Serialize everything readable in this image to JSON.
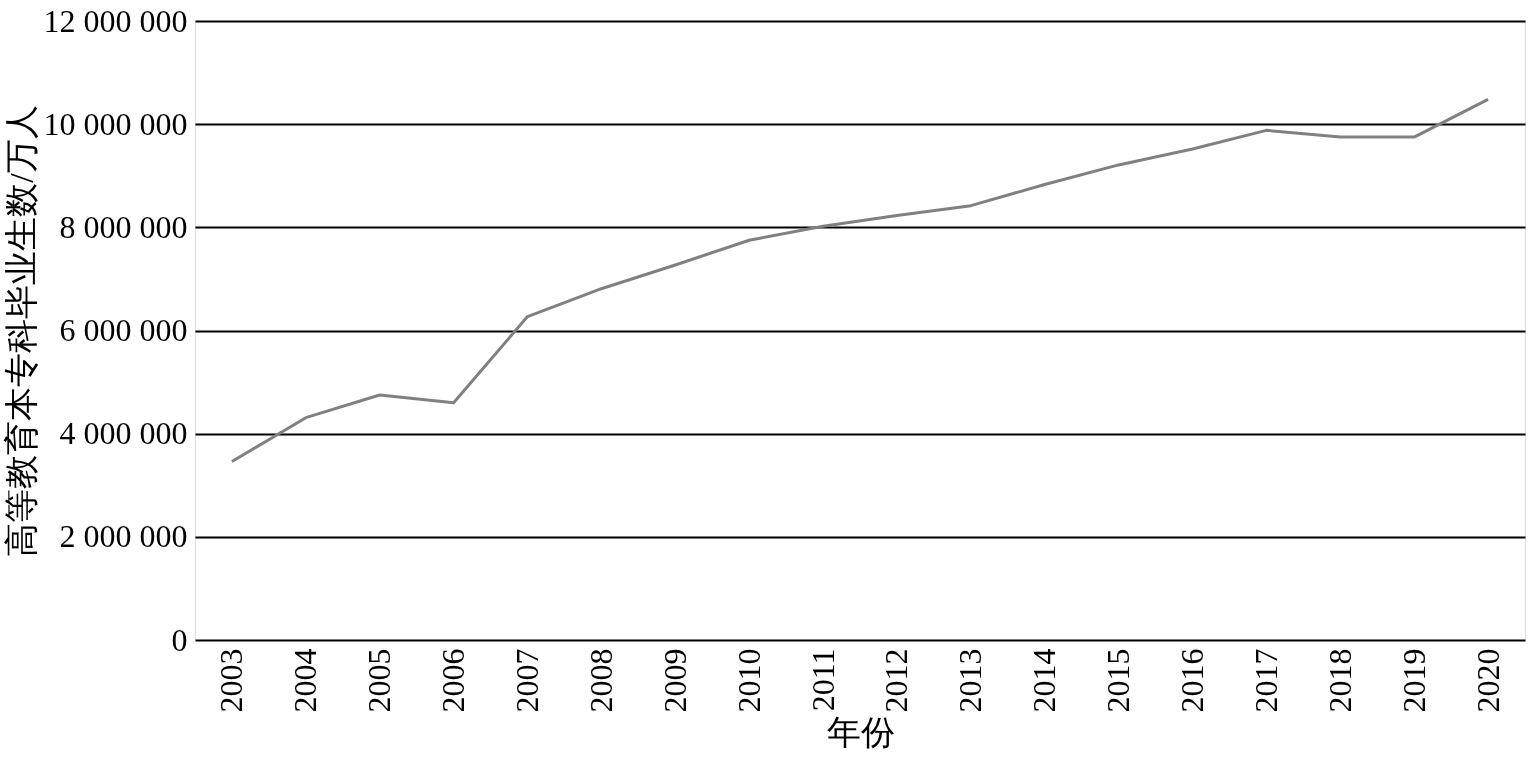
{
  "chart_data": {
    "type": "line",
    "xlabel": "年份",
    "ylabel": "高等教育本专科毕业生数/万人",
    "categories": [
      "2003",
      "2004",
      "2005",
      "2006",
      "2007",
      "2008",
      "2009",
      "2010",
      "2011",
      "2012",
      "2013",
      "2014",
      "2015",
      "2016",
      "2017",
      "2018",
      "2019",
      "2020"
    ],
    "series": [
      {
        "color": "#808080",
        "values": [
          3460000,
          4310000,
          4750000,
          4600000,
          6270000,
          6810000,
          7270000,
          7750000,
          8020000,
          8230000,
          8420000,
          8830000,
          9210000,
          9520000,
          9880000,
          9750000,
          9750000,
          10480000
        ]
      }
    ],
    "ylim": [
      0,
      12000000
    ],
    "yticks": [
      {
        "value": 0,
        "label": "0"
      },
      {
        "value": 2000000,
        "label": "2 000 000"
      },
      {
        "value": 4000000,
        "label": "4 000 000"
      },
      {
        "value": 6000000,
        "label": "6 000 000"
      },
      {
        "value": 8000000,
        "label": "8 000 000"
      },
      {
        "value": 10000000,
        "label": "10 000 000"
      },
      {
        "value": 12000000,
        "label": "12 000 000"
      }
    ],
    "grid": "y",
    "marker": "none",
    "line_style": "solid",
    "legend": false
  }
}
